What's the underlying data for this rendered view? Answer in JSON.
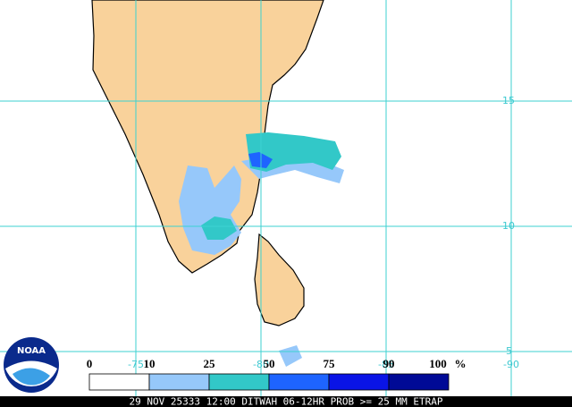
{
  "map": {
    "lat_labels": [
      "15",
      "10",
      "5"
    ],
    "lon_labels": [
      "-75",
      "-80",
      "-85",
      "-90"
    ],
    "legend": {
      "labels": [
        "0",
        "10",
        "25",
        "50",
        "75",
        "90",
        "100"
      ],
      "unit": "%",
      "colors": [
        "#ffffff",
        "#96c8fa",
        "#32c8c8",
        "#1e64ff",
        "#0a14e6",
        "#000a96"
      ]
    },
    "logo": "NOAA",
    "footer": "29 NOV 25333 12:00 DITWAH 06-12HR PROB >= 25 MM ETRAP"
  }
}
